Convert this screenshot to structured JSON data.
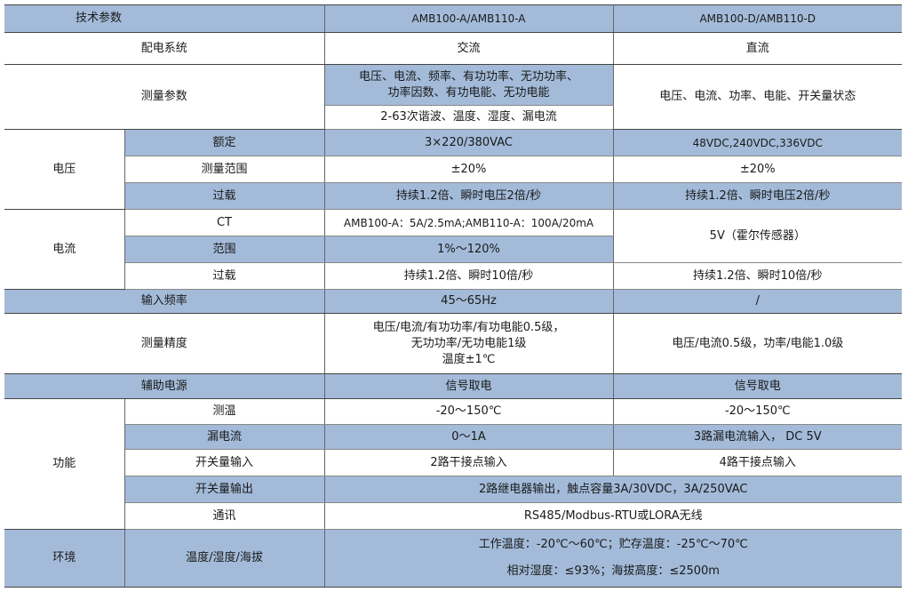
{
  "colors": {
    "header_blue": "#a3bbd9",
    "border": "#444444"
  },
  "header": {
    "param": "技术参数",
    "col_a": "AMB100-A/AMB110-A",
    "col_d": "AMB100-D/AMB110-D"
  },
  "distribution": {
    "label": "配电系统",
    "a": "交流",
    "d": "直流"
  },
  "measure": {
    "label": "测量参数",
    "a1_line1": "电压、电流、频率、有功功率、无功功率、",
    "a1_line2": "功率因数、有功电能、无功电能",
    "a2": "2-63次谐波、温度、湿度、漏电流",
    "d": "电压、电流、功率、电能、开关量状态"
  },
  "voltage": {
    "label": "电压",
    "rows": [
      {
        "name": "额定",
        "a": "3×220/380VAC",
        "d": "48VDC,240VDC,336VDC"
      },
      {
        "name": "测量范围",
        "a": "±20%",
        "d": "±20%"
      },
      {
        "name": "过载",
        "a": "持续1.2倍、瞬时电压2倍/秒",
        "d": "持续1.2倍、瞬时电压2倍/秒"
      }
    ]
  },
  "current": {
    "label": "电流",
    "rows": [
      {
        "name": "CT",
        "a": "AMB100-A：5A/2.5mA;AMB110-A：100A/20mA"
      },
      {
        "name": "范围",
        "a": "1%～120%"
      },
      {
        "name": "过载",
        "a": "持续1.2倍、瞬时10倍/秒",
        "d": "持续1.2倍、瞬时10倍/秒"
      }
    ],
    "ct_range_d": "5V（霍尔传感器）"
  },
  "frequency": {
    "label": "输入频率",
    "a": "45～65Hz",
    "d": "/"
  },
  "accuracy": {
    "label": "测量精度",
    "a_line1": "电压/电流/有功功率/有功电能0.5级，",
    "a_line2": "无功功率/无功电能1级",
    "a_line3": "温度±1℃",
    "d": "电压/电流0.5级，功率/电能1.0级"
  },
  "aux_power": {
    "label": "辅助电源",
    "a": "信号取电",
    "d": "信号取电"
  },
  "function": {
    "label": "功能",
    "rows": [
      {
        "name": "测温",
        "a": "-20～150℃",
        "d": "-20～150℃"
      },
      {
        "name": "漏电流",
        "a": "0～1A",
        "d": "3路漏电流输入， DC 5V"
      },
      {
        "name": "开关量输入",
        "a": "2路干接点输入",
        "d": "4路干接点输入"
      },
      {
        "name": "开关量输出",
        "both": "2路继电器输出，触点容量3A/30VDC，3A/250VAC"
      },
      {
        "name": "通讯",
        "both": "RS485/Modbus-RTU或LORA无线"
      }
    ]
  },
  "environment": {
    "label": "环境",
    "name": "温度/湿度/海拔",
    "line1": "工作温度：-20℃～60℃；贮存温度：-25℃～70℃",
    "line2": "相对湿度：≤93%；海拔高度：≤2500m"
  }
}
